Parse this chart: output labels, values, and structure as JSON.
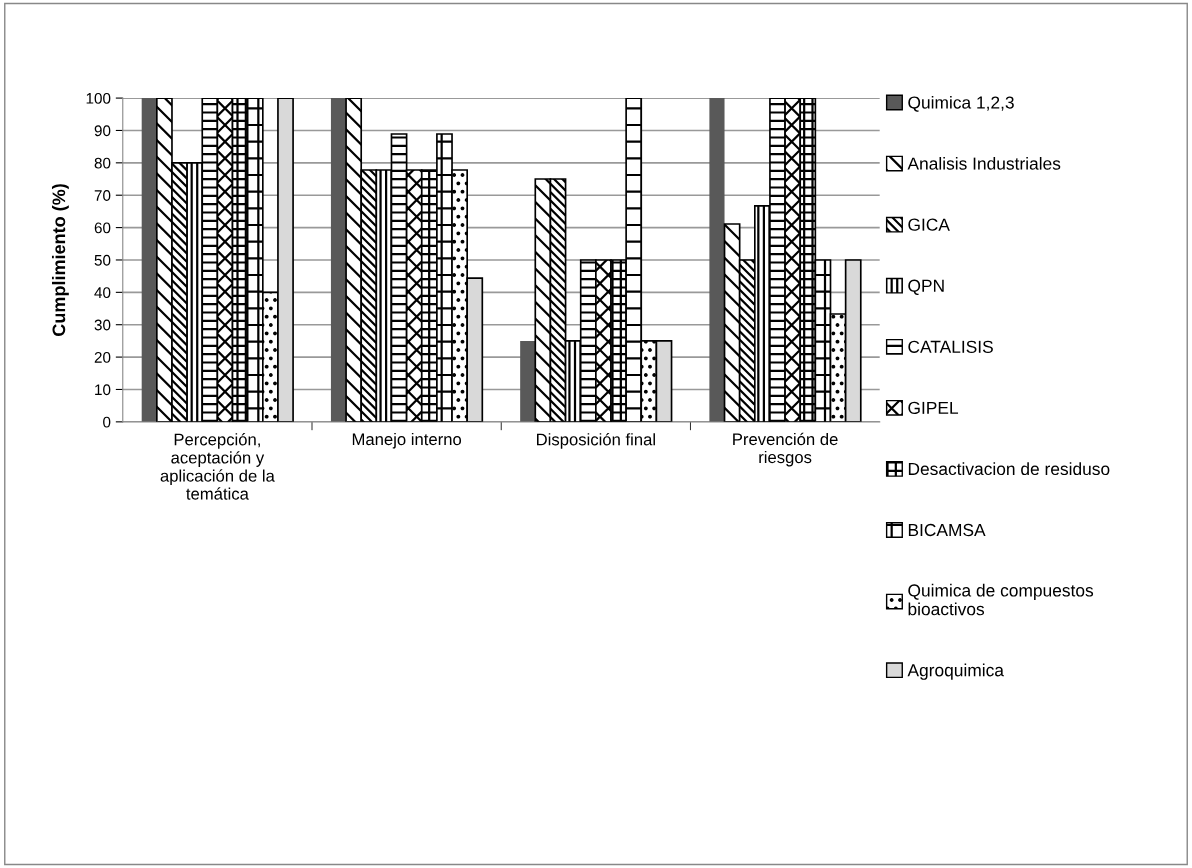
{
  "chart_data": {
    "type": "bar",
    "ylabel": "Cumplimiento (%)",
    "categories": [
      "Percepción, aceptación y aplicación de la temática",
      "Manejo interno",
      "Disposición final",
      "Prevención de riesgos"
    ],
    "series": [
      {
        "name": "Quimica 1,2,3",
        "color": "#595959",
        "values": [
          100,
          100,
          25,
          100
        ]
      },
      {
        "name": "Analisis Industriales",
        "color": "#000000",
        "values": [
          100,
          100,
          75,
          61.1
        ]
      },
      {
        "name": "GICA",
        "color": "#000000",
        "values": [
          80,
          77.8,
          75,
          50
        ]
      },
      {
        "name": "QPN",
        "color": "#000000",
        "values": [
          80,
          77.8,
          25,
          66.7
        ]
      },
      {
        "name": "CATALISIS",
        "color": "#000000",
        "values": [
          100,
          88.9,
          50,
          100
        ]
      },
      {
        "name": "GIPEL",
        "color": "#000000",
        "values": [
          100,
          77.8,
          50,
          100
        ]
      },
      {
        "name": "Desactivacion de residuso",
        "color": "#000000",
        "values": [
          100,
          77.8,
          50,
          100
        ]
      },
      {
        "name": "BICAMSA",
        "color": "#000000",
        "values": [
          100,
          88.9,
          100,
          50
        ]
      },
      {
        "name": "Quimica de compuestos bioactivos",
        "color": "#000000",
        "values": [
          40,
          77.8,
          25,
          33.3
        ]
      },
      {
        "name": "Agroquimica",
        "color": "#d9d9d9",
        "values": [
          100,
          44.4,
          25,
          50
        ]
      }
    ],
    "ylim": [
      0,
      100
    ],
    "yticks": [
      0,
      10,
      20,
      30,
      40,
      50,
      60,
      70,
      80,
      90,
      100
    ],
    "grid": "y",
    "legend": "right"
  }
}
